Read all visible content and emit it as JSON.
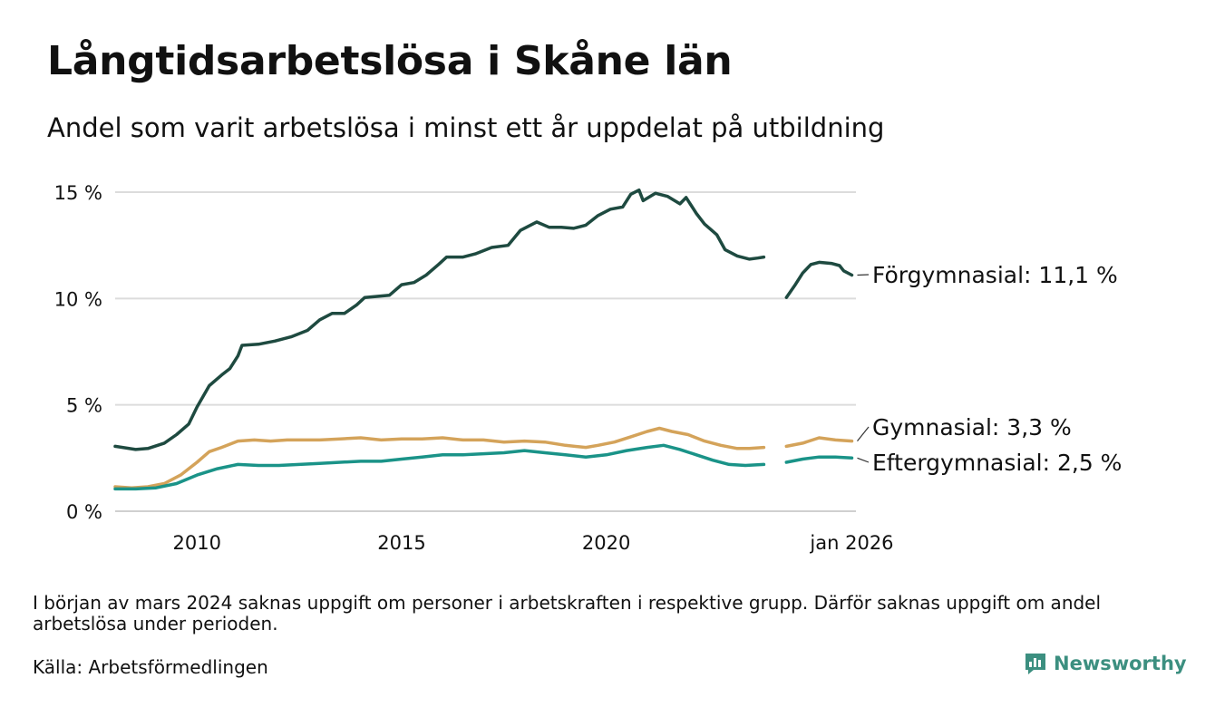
{
  "title": "Långtidsarbetslösa i Skåne län",
  "subtitle": "Andel som varit arbetslösa i minst ett år uppdelat på utbildning",
  "note": "I början av mars 2024 saknas uppgift om personer i arbetskraften i respektive grupp. Därför saknas uppgift om andel arbetslösa under perioden.",
  "source": "Källa: Arbetsförmedlingen",
  "brand": {
    "name": "Newsworthy",
    "icon": "newsworthy-logo-icon",
    "color": "#3c8f80"
  },
  "chart_data": {
    "type": "line",
    "x_range": [
      2008.0,
      2026.1
    ],
    "ylim": [
      0,
      15.5
    ],
    "y_ticks": [
      0,
      5,
      10,
      15
    ],
    "y_tick_labels": [
      "0 %",
      "5 %",
      "10 %",
      "15 %"
    ],
    "x_ticks": [
      2010,
      2015,
      2020,
      2026.0
    ],
    "x_tick_labels": [
      "2010",
      "2015",
      "2020",
      "jan 2026"
    ],
    "gap": [
      2024.0,
      2024.3
    ],
    "grid": true,
    "series": [
      {
        "name": "Förgymnasial",
        "label": "Förgymnasial: 11,1 %",
        "color": "#1e4a40",
        "points": [
          [
            2008.0,
            3.05
          ],
          [
            2008.5,
            2.9
          ],
          [
            2008.8,
            2.95
          ],
          [
            2009.2,
            3.2
          ],
          [
            2009.5,
            3.6
          ],
          [
            2009.8,
            4.1
          ],
          [
            2010.0,
            4.9
          ],
          [
            2010.3,
            5.9
          ],
          [
            2010.6,
            6.4
          ],
          [
            2010.8,
            6.7
          ],
          [
            2011.0,
            7.3
          ],
          [
            2011.1,
            7.8
          ],
          [
            2011.5,
            7.85
          ],
          [
            2011.9,
            8.0
          ],
          [
            2012.3,
            8.2
          ],
          [
            2012.7,
            8.5
          ],
          [
            2013.0,
            9.0
          ],
          [
            2013.3,
            9.3
          ],
          [
            2013.6,
            9.3
          ],
          [
            2013.9,
            9.7
          ],
          [
            2014.1,
            10.05
          ],
          [
            2014.4,
            10.1
          ],
          [
            2014.7,
            10.15
          ],
          [
            2015.0,
            10.65
          ],
          [
            2015.3,
            10.75
          ],
          [
            2015.6,
            11.1
          ],
          [
            2015.9,
            11.6
          ],
          [
            2016.1,
            11.95
          ],
          [
            2016.5,
            11.95
          ],
          [
            2016.8,
            12.1
          ],
          [
            2017.2,
            12.4
          ],
          [
            2017.6,
            12.5
          ],
          [
            2017.9,
            13.2
          ],
          [
            2018.3,
            13.6
          ],
          [
            2018.6,
            13.35
          ],
          [
            2018.9,
            13.35
          ],
          [
            2019.2,
            13.3
          ],
          [
            2019.5,
            13.45
          ],
          [
            2019.8,
            13.9
          ],
          [
            2020.1,
            14.2
          ],
          [
            2020.4,
            14.3
          ],
          [
            2020.6,
            14.9
          ],
          [
            2020.8,
            15.1
          ],
          [
            2020.9,
            14.6
          ],
          [
            2021.2,
            14.95
          ],
          [
            2021.5,
            14.8
          ],
          [
            2021.8,
            14.45
          ],
          [
            2021.95,
            14.75
          ],
          [
            2022.2,
            14.0
          ],
          [
            2022.4,
            13.5
          ],
          [
            2022.7,
            13.0
          ],
          [
            2022.9,
            12.3
          ],
          [
            2023.2,
            12.0
          ],
          [
            2023.5,
            11.85
          ],
          [
            2023.7,
            11.9
          ],
          [
            2023.85,
            11.95
          ],
          [
            null,
            null
          ],
          [
            2024.4,
            10.05
          ],
          [
            2024.6,
            10.6
          ],
          [
            2024.8,
            11.2
          ],
          [
            2025.0,
            11.6
          ],
          [
            2025.2,
            11.7
          ],
          [
            2025.5,
            11.65
          ],
          [
            2025.7,
            11.55
          ],
          [
            2025.8,
            11.3
          ],
          [
            2026.0,
            11.1
          ]
        ]
      },
      {
        "name": "Gymnasial",
        "label": "Gymnasial:  3,3 %",
        "color": "#d4a35a",
        "points": [
          [
            2008.0,
            1.15
          ],
          [
            2008.4,
            1.1
          ],
          [
            2008.8,
            1.15
          ],
          [
            2009.2,
            1.3
          ],
          [
            2009.6,
            1.7
          ],
          [
            2010.0,
            2.3
          ],
          [
            2010.3,
            2.8
          ],
          [
            2010.6,
            3.0
          ],
          [
            2011.0,
            3.3
          ],
          [
            2011.4,
            3.35
          ],
          [
            2011.8,
            3.3
          ],
          [
            2012.2,
            3.35
          ],
          [
            2012.6,
            3.35
          ],
          [
            2013.0,
            3.35
          ],
          [
            2013.5,
            3.4
          ],
          [
            2014.0,
            3.45
          ],
          [
            2014.5,
            3.35
          ],
          [
            2015.0,
            3.4
          ],
          [
            2015.5,
            3.4
          ],
          [
            2016.0,
            3.45
          ],
          [
            2016.5,
            3.35
          ],
          [
            2017.0,
            3.35
          ],
          [
            2017.5,
            3.25
          ],
          [
            2018.0,
            3.3
          ],
          [
            2018.5,
            3.25
          ],
          [
            2019.0,
            3.1
          ],
          [
            2019.5,
            3.0
          ],
          [
            2019.8,
            3.1
          ],
          [
            2020.2,
            3.25
          ],
          [
            2020.6,
            3.5
          ],
          [
            2021.0,
            3.75
          ],
          [
            2021.3,
            3.9
          ],
          [
            2021.6,
            3.75
          ],
          [
            2022.0,
            3.6
          ],
          [
            2022.4,
            3.3
          ],
          [
            2022.8,
            3.1
          ],
          [
            2023.2,
            2.95
          ],
          [
            2023.5,
            2.95
          ],
          [
            2023.85,
            3.0
          ],
          [
            null,
            null
          ],
          [
            2024.4,
            3.05
          ],
          [
            2024.8,
            3.2
          ],
          [
            2025.2,
            3.45
          ],
          [
            2025.6,
            3.35
          ],
          [
            2026.0,
            3.3
          ]
        ]
      },
      {
        "name": "Eftergymnasial",
        "label": "Eftergymnasial:  2,5 %",
        "color": "#1a9388",
        "points": [
          [
            2008.0,
            1.05
          ],
          [
            2008.5,
            1.05
          ],
          [
            2009.0,
            1.1
          ],
          [
            2009.5,
            1.3
          ],
          [
            2010.0,
            1.7
          ],
          [
            2010.5,
            2.0
          ],
          [
            2011.0,
            2.2
          ],
          [
            2011.5,
            2.15
          ],
          [
            2012.0,
            2.15
          ],
          [
            2012.5,
            2.2
          ],
          [
            2013.0,
            2.25
          ],
          [
            2013.5,
            2.3
          ],
          [
            2014.0,
            2.35
          ],
          [
            2014.5,
            2.35
          ],
          [
            2015.0,
            2.45
          ],
          [
            2015.5,
            2.55
          ],
          [
            2016.0,
            2.65
          ],
          [
            2016.5,
            2.65
          ],
          [
            2017.0,
            2.7
          ],
          [
            2017.5,
            2.75
          ],
          [
            2018.0,
            2.85
          ],
          [
            2018.5,
            2.75
          ],
          [
            2019.0,
            2.65
          ],
          [
            2019.5,
            2.55
          ],
          [
            2020.0,
            2.65
          ],
          [
            2020.5,
            2.85
          ],
          [
            2021.0,
            3.0
          ],
          [
            2021.4,
            3.1
          ],
          [
            2021.8,
            2.9
          ],
          [
            2022.2,
            2.65
          ],
          [
            2022.6,
            2.4
          ],
          [
            2023.0,
            2.2
          ],
          [
            2023.4,
            2.15
          ],
          [
            2023.85,
            2.2
          ],
          [
            null,
            null
          ],
          [
            2024.4,
            2.3
          ],
          [
            2024.8,
            2.45
          ],
          [
            2025.2,
            2.55
          ],
          [
            2025.6,
            2.55
          ],
          [
            2026.0,
            2.5
          ]
        ]
      }
    ]
  }
}
